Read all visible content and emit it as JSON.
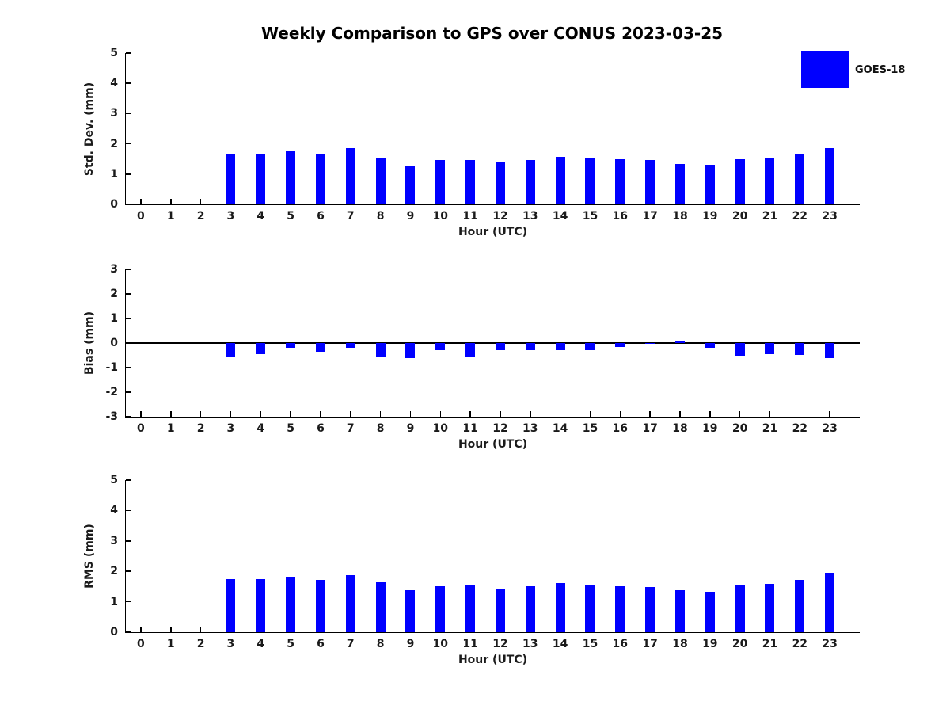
{
  "title": "Weekly Comparison to GPS over CONUS 2023-03-25",
  "legend": {
    "label": "GOES-18",
    "color": "#0000ff"
  },
  "chart_data": [
    {
      "id": "stddev",
      "type": "bar",
      "series_name": "GOES-18",
      "ylabel": "Std. Dev. (mm)",
      "xlabel": "Hour (UTC)",
      "bar_color": "#0000ff",
      "xlim": [
        -0.5,
        24
      ],
      "ylim": [
        0,
        5
      ],
      "yticks": [
        0,
        1,
        2,
        3,
        4,
        5
      ],
      "categories": [
        "0",
        "1",
        "2",
        "3",
        "4",
        "5",
        "6",
        "7",
        "8",
        "9",
        "10",
        "11",
        "12",
        "13",
        "14",
        "15",
        "16",
        "17",
        "18",
        "19",
        "20",
        "21",
        "22",
        "23"
      ],
      "values": [
        null,
        null,
        null,
        1.65,
        1.67,
        1.78,
        1.68,
        1.87,
        1.55,
        1.26,
        1.46,
        1.47,
        1.4,
        1.46,
        1.58,
        1.53,
        1.5,
        1.46,
        1.33,
        1.3,
        1.5,
        1.51,
        1.65,
        1.85
      ]
    },
    {
      "id": "bias",
      "type": "bar",
      "series_name": "GOES-18",
      "ylabel": "Bias (mm)",
      "xlabel": "Hour (UTC)",
      "bar_color": "#0000ff",
      "xlim": [
        -0.5,
        24
      ],
      "ylim": [
        -3,
        3
      ],
      "yticks": [
        3,
        2,
        1,
        0,
        -1,
        -2,
        -3
      ],
      "zero_line": true,
      "categories": [
        "0",
        "1",
        "2",
        "3",
        "4",
        "5",
        "6",
        "7",
        "8",
        "9",
        "10",
        "11",
        "12",
        "13",
        "14",
        "15",
        "16",
        "17",
        "18",
        "19",
        "20",
        "21",
        "22",
        "23"
      ],
      "values": [
        null,
        null,
        null,
        -0.55,
        -0.45,
        -0.2,
        -0.35,
        -0.2,
        -0.55,
        -0.6,
        -0.28,
        -0.55,
        -0.28,
        -0.3,
        -0.3,
        -0.28,
        -0.17,
        -0.03,
        0.1,
        -0.2,
        -0.5,
        -0.45,
        -0.48,
        -0.6
      ]
    },
    {
      "id": "rms",
      "type": "bar",
      "series_name": "GOES-18",
      "ylabel": "RMS (mm)",
      "xlabel": "Hour (UTC)",
      "bar_color": "#0000ff",
      "xlim": [
        -0.5,
        24
      ],
      "ylim": [
        0,
        5
      ],
      "yticks": [
        0,
        1,
        2,
        3,
        4,
        5
      ],
      "categories": [
        "0",
        "1",
        "2",
        "3",
        "4",
        "5",
        "6",
        "7",
        "8",
        "9",
        "10",
        "11",
        "12",
        "13",
        "14",
        "15",
        "16",
        "17",
        "18",
        "19",
        "20",
        "21",
        "22",
        "23"
      ],
      "values": [
        null,
        null,
        null,
        1.75,
        1.75,
        1.81,
        1.72,
        1.87,
        1.65,
        1.39,
        1.5,
        1.56,
        1.44,
        1.51,
        1.62,
        1.57,
        1.51,
        1.49,
        1.37,
        1.34,
        1.54,
        1.58,
        1.72,
        1.96
      ]
    }
  ]
}
